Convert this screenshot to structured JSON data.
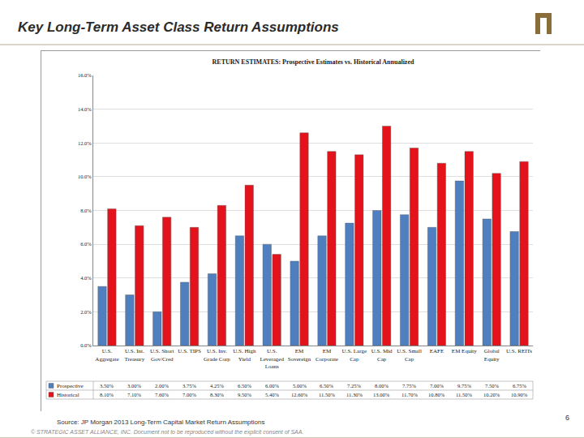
{
  "slide": {
    "title": "Key Long-Term Asset Class Return Assumptions",
    "source": "Source: JP Morgan 2013 Long-Term Capital Market Return Assumptions",
    "page_number": 6,
    "footer": "© STRATEGIC ASSET ALLIANCE, INC. Document not to be reproduced without the explicit consent of SAA."
  },
  "chart_data": {
    "type": "bar",
    "title": "RETURN ESTIMATES: Prospective Estimates vs. Historical Annualized",
    "categories": [
      "U.S. Aggregate",
      "U.S. Int. Treasury",
      "U.S. Short Gov/Cred",
      "U.S. TIPS",
      "U.S. Inv. Grade Corp",
      "U.S. High Yield",
      "U.S. Leveraged Loans",
      "EM Sovereign",
      "EM Corporate",
      "U.S. Large Cap",
      "U.S. Mid Cap",
      "U.S. Small Cap",
      "EAFE",
      "EM Equity",
      "Global Equity",
      "U.S. REITs"
    ],
    "series": [
      {
        "name": "Prospective",
        "color": "#4f7fbf",
        "values": [
          3.5,
          3.0,
          2.0,
          3.75,
          4.25,
          6.5,
          6.0,
          5.0,
          6.5,
          7.25,
          8.0,
          7.75,
          7.0,
          9.75,
          7.5,
          6.75
        ],
        "value_labels": [
          "3.50%",
          "3.00%",
          "2.00%",
          "3.75%",
          "4.25%",
          "6.50%",
          "6.00%",
          "5.00%",
          "6.50%",
          "7.25%",
          "8.00%",
          "7.75%",
          "7.00%",
          "9.75%",
          "7.50%",
          "6.75%"
        ]
      },
      {
        "name": "Historical",
        "color": "#e3121b",
        "values": [
          8.1,
          7.1,
          7.6,
          7.0,
          8.3,
          9.5,
          5.4,
          12.6,
          11.5,
          11.3,
          13.0,
          11.7,
          10.8,
          11.5,
          10.2,
          10.9
        ],
        "value_labels": [
          "8.10%",
          "7.10%",
          "7.60%",
          "7.00%",
          "8.30%",
          "9.50%",
          "5.40%",
          "12.60%",
          "11.50%",
          "11.30%",
          "13.00%",
          "11.70%",
          "10.80%",
          "11.50%",
          "10.20%",
          "10.90%"
        ]
      }
    ],
    "ylim": [
      0,
      16
    ],
    "yticks": [
      {
        "value": 0,
        "label": "0.0%"
      },
      {
        "value": 2,
        "label": "2.0%"
      },
      {
        "value": 4,
        "label": "4.0%"
      },
      {
        "value": 6,
        "label": "6.0%"
      },
      {
        "value": 8,
        "label": "8.0%"
      },
      {
        "value": 10,
        "label": "10.0%"
      },
      {
        "value": 12,
        "label": "12.0%"
      },
      {
        "value": 14,
        "label": "14.0%"
      },
      {
        "value": 16,
        "label": "16.0%"
      }
    ],
    "grid": true
  }
}
